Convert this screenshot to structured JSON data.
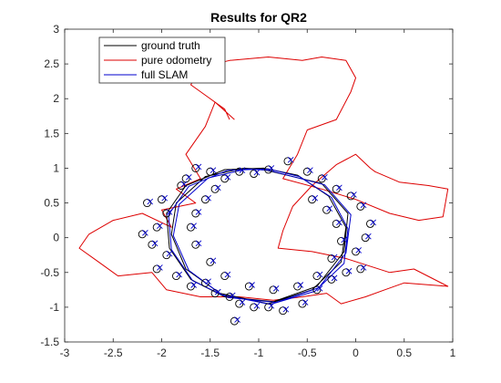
{
  "chart_data": {
    "type": "line",
    "title": "Results for QR2",
    "xlabel": "",
    "ylabel": "",
    "xlim": [
      -3,
      1
    ],
    "ylim": [
      -1.5,
      3
    ],
    "xticks": [
      "-3",
      "-2.5",
      "-2",
      "-1.5",
      "-1",
      "-0.5",
      "0",
      "0.5",
      "1"
    ],
    "yticks": [
      "-1.5",
      "-1",
      "-0.5",
      "0",
      "0.5",
      "1",
      "1.5",
      "2",
      "2.5",
      "3"
    ],
    "grid": false,
    "legend_position": "top-left",
    "series": [
      {
        "name": "ground truth",
        "color": "#000000",
        "style": "line",
        "x": [
          -0.95,
          -0.35,
          -0.08,
          -0.12,
          -0.4,
          -0.85,
          -1.35,
          -1.7,
          -1.92,
          -1.95,
          -1.75,
          -1.35,
          -0.95,
          -0.6,
          -0.28,
          -0.1,
          -0.15,
          -0.45,
          -0.9,
          -1.4,
          -1.75,
          -1.9,
          -1.85,
          -1.55,
          -1.15,
          -0.95
        ],
        "y": [
          0.98,
          0.78,
          0.35,
          -0.2,
          -0.7,
          -0.92,
          -0.85,
          -0.6,
          -0.15,
          0.35,
          0.75,
          0.98,
          1.0,
          0.9,
          0.6,
          0.15,
          -0.35,
          -0.75,
          -0.95,
          -0.8,
          -0.45,
          0.05,
          0.5,
          0.88,
          1.0,
          0.98
        ]
      },
      {
        "name": "pure odometry",
        "color": "#dd0000",
        "style": "line",
        "x": [
          -1.25,
          -1.45,
          -1.55,
          -1.75,
          -1.6,
          -1.85,
          -1.65,
          -2.0,
          -1.9,
          -2.2,
          -2.5,
          -2.75,
          -2.85,
          -2.65,
          -2.45,
          -2.1,
          -1.95,
          -1.6,
          -1.2,
          -0.85,
          -0.55,
          -0.3,
          -0.15,
          0.1,
          0.3,
          0.5,
          0.95,
          0.6,
          0.35,
          -0.1,
          -0.45,
          -0.8,
          -0.75,
          -0.65,
          -0.45,
          -0.2,
          0.0,
          0.15,
          0.2,
          0.45,
          0.75,
          0.95,
          0.9,
          0.65,
          0.35,
          0.0,
          -0.35,
          -0.75,
          -0.6,
          -0.5,
          -0.2,
          -0.05,
          0.0,
          -0.1,
          -0.35,
          -0.55,
          -0.9,
          -1.3,
          -1.6,
          -1.7,
          -1.55,
          -1.35,
          -1.3
        ],
        "y": [
          1.7,
          1.95,
          1.6,
          1.2,
          0.85,
          0.7,
          0.5,
          0.4,
          0.15,
          0.35,
          0.25,
          0.05,
          -0.15,
          -0.35,
          -0.55,
          -0.5,
          -0.75,
          -0.85,
          -0.85,
          -0.9,
          -0.85,
          -0.8,
          -0.95,
          -0.85,
          -0.75,
          -0.65,
          -0.7,
          -0.45,
          -0.5,
          -0.3,
          -0.2,
          -0.15,
          0.1,
          0.45,
          0.75,
          1.05,
          1.2,
          1.0,
          0.95,
          0.8,
          0.75,
          0.7,
          0.3,
          0.25,
          0.35,
          0.55,
          0.7,
          0.85,
          1.2,
          1.55,
          1.7,
          2.1,
          2.3,
          2.55,
          2.6,
          2.55,
          2.6,
          2.55,
          2.45,
          2.2,
          2.05,
          1.85,
          1.7
        ]
      },
      {
        "name": "full SLAM",
        "color": "#0000cc",
        "style": "line",
        "x": [
          -0.9,
          -0.32,
          -0.05,
          -0.1,
          -0.38,
          -0.82,
          -1.32,
          -1.68,
          -1.9,
          -1.93,
          -1.72,
          -1.32,
          -0.9,
          -0.58,
          -0.25,
          -0.08,
          -0.12,
          -0.42,
          -0.88,
          -1.38,
          -1.72,
          -1.88,
          -1.82,
          -1.52,
          -1.12,
          -0.9
        ],
        "y": [
          0.97,
          0.76,
          0.33,
          -0.22,
          -0.72,
          -0.93,
          -0.86,
          -0.62,
          -0.17,
          0.33,
          0.74,
          0.97,
          0.99,
          0.88,
          0.58,
          0.13,
          -0.37,
          -0.77,
          -0.96,
          -0.82,
          -0.47,
          0.03,
          0.48,
          0.86,
          0.99,
          0.97
        ]
      }
    ],
    "landmarks": {
      "ground_truth_circles": [
        [
          -1.65,
          1.0
        ],
        [
          -1.5,
          0.95
        ],
        [
          -1.75,
          0.85
        ],
        [
          -1.8,
          0.75
        ],
        [
          -2.0,
          0.55
        ],
        [
          -2.15,
          0.5
        ],
        [
          -1.95,
          0.35
        ],
        [
          -2.05,
          0.15
        ],
        [
          -2.2,
          0.05
        ],
        [
          -2.1,
          -0.1
        ],
        [
          -1.95,
          -0.25
        ],
        [
          -2.05,
          -0.45
        ],
        [
          -1.85,
          -0.55
        ],
        [
          -1.7,
          -0.7
        ],
        [
          -1.55,
          -0.65
        ],
        [
          -1.45,
          -0.8
        ],
        [
          -1.3,
          -0.85
        ],
        [
          -1.2,
          -0.95
        ],
        [
          -1.25,
          -1.2
        ],
        [
          -1.05,
          -1.0
        ],
        [
          -0.9,
          -1.0
        ],
        [
          -0.75,
          -1.05
        ],
        [
          -0.55,
          -0.95
        ],
        [
          -0.4,
          -0.75
        ],
        [
          -0.25,
          -0.6
        ],
        [
          -0.1,
          -0.5
        ],
        [
          0.05,
          -0.45
        ],
        [
          0.0,
          -0.2
        ],
        [
          0.1,
          0.0
        ],
        [
          0.15,
          0.2
        ],
        [
          0.05,
          0.45
        ],
        [
          -0.05,
          0.6
        ],
        [
          -0.2,
          0.7
        ],
        [
          -0.35,
          0.85
        ],
        [
          -0.5,
          0.95
        ],
        [
          -0.7,
          1.1
        ],
        [
          -0.9,
          0.98
        ],
        [
          -1.05,
          0.92
        ],
        [
          -1.2,
          0.95
        ],
        [
          -1.35,
          0.85
        ],
        [
          -1.45,
          0.7
        ],
        [
          -1.55,
          0.55
        ],
        [
          -1.65,
          0.35
        ],
        [
          -1.7,
          0.15
        ],
        [
          -1.65,
          -0.1
        ],
        [
          -1.5,
          -0.35
        ],
        [
          -1.35,
          -0.55
        ],
        [
          -1.1,
          -0.7
        ],
        [
          -0.85,
          -0.75
        ],
        [
          -0.6,
          -0.7
        ],
        [
          -0.4,
          -0.55
        ],
        [
          -0.25,
          -0.3
        ],
        [
          -0.15,
          -0.05
        ],
        [
          -0.2,
          0.2
        ],
        [
          -0.3,
          0.4
        ],
        [
          -0.45,
          0.55
        ]
      ],
      "slam_crosses": [
        [
          -1.62,
          1.02
        ],
        [
          -1.47,
          0.97
        ],
        [
          -1.72,
          0.87
        ],
        [
          -1.77,
          0.77
        ],
        [
          -1.97,
          0.57
        ],
        [
          -2.12,
          0.52
        ],
        [
          -1.92,
          0.37
        ],
        [
          -2.02,
          0.17
        ],
        [
          -2.17,
          0.07
        ],
        [
          -2.07,
          -0.08
        ],
        [
          -1.92,
          -0.23
        ],
        [
          -2.02,
          -0.43
        ],
        [
          -1.82,
          -0.53
        ],
        [
          -1.67,
          -0.68
        ],
        [
          -1.52,
          -0.63
        ],
        [
          -1.42,
          -0.78
        ],
        [
          -1.27,
          -0.83
        ],
        [
          -1.17,
          -0.93
        ],
        [
          -1.22,
          -1.18
        ],
        [
          -1.02,
          -0.98
        ],
        [
          -0.87,
          -0.98
        ],
        [
          -0.72,
          -1.03
        ],
        [
          -0.52,
          -0.93
        ],
        [
          -0.37,
          -0.73
        ],
        [
          -0.22,
          -0.58
        ],
        [
          -0.07,
          -0.48
        ],
        [
          0.08,
          -0.43
        ],
        [
          0.03,
          -0.18
        ],
        [
          0.13,
          0.02
        ],
        [
          0.18,
          0.22
        ],
        [
          0.08,
          0.47
        ],
        [
          -0.02,
          0.62
        ],
        [
          -0.17,
          0.72
        ],
        [
          -0.32,
          0.87
        ],
        [
          -0.47,
          0.97
        ],
        [
          -0.67,
          1.12
        ],
        [
          -0.87,
          1.0
        ],
        [
          -1.02,
          0.94
        ],
        [
          -1.17,
          0.97
        ],
        [
          -1.32,
          0.87
        ],
        [
          -1.42,
          0.72
        ],
        [
          -1.52,
          0.57
        ],
        [
          -1.62,
          0.37
        ],
        [
          -1.67,
          0.17
        ],
        [
          -1.62,
          -0.08
        ],
        [
          -1.47,
          -0.33
        ],
        [
          -1.32,
          -0.53
        ],
        [
          -1.07,
          -0.68
        ],
        [
          -0.82,
          -0.73
        ],
        [
          -0.57,
          -0.68
        ],
        [
          -0.37,
          -0.53
        ],
        [
          -0.22,
          -0.28
        ],
        [
          -0.12,
          -0.03
        ],
        [
          -0.17,
          0.22
        ],
        [
          -0.27,
          0.42
        ],
        [
          -0.42,
          0.57
        ]
      ]
    }
  }
}
